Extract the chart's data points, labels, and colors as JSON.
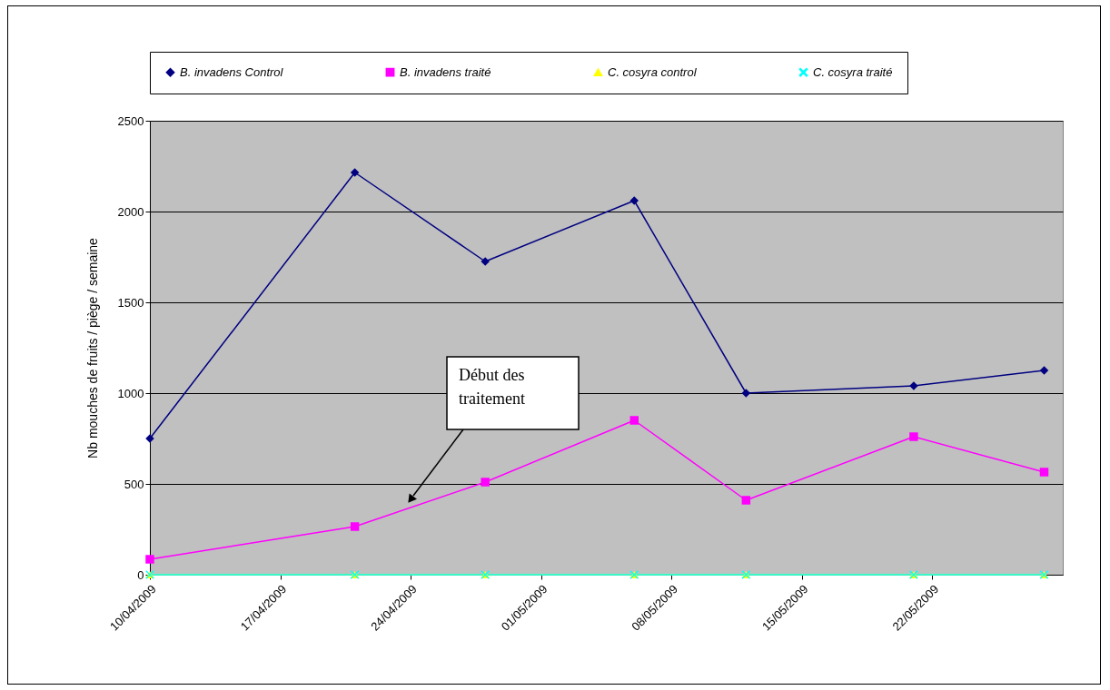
{
  "chart_data": {
    "type": "line",
    "ylabel": "Nb mouches de fruits / piège / semaine",
    "x": [
      "2009-04-10",
      "2009-04-21",
      "2009-04-28",
      "2009-05-06",
      "2009-05-12",
      "2009-05-21",
      "2009-05-28"
    ],
    "series": [
      {
        "name": "B. invadens Control",
        "color": "#000080",
        "marker": "diamond",
        "values": [
          750,
          2215,
          1725,
          2060,
          1000,
          1040,
          1125
        ]
      },
      {
        "name": "B. invadens traité",
        "color": "#ff00ff",
        "marker": "square",
        "values": [
          85,
          265,
          510,
          850,
          410,
          760,
          565
        ]
      },
      {
        "name": "C. cosyra control",
        "color": "#ffff00",
        "marker": "triangle",
        "values": [
          0,
          0,
          0,
          0,
          0,
          0,
          0
        ]
      },
      {
        "name": "C. cosyra traité",
        "color": "#00ffff",
        "marker": "cross",
        "values": [
          0,
          0,
          0,
          0,
          0,
          0,
          0
        ]
      }
    ],
    "xlim": [
      "2009-04-10",
      "2009-05-29"
    ],
    "xticks": [
      {
        "value": "2009-04-10",
        "label": "10/04/2009"
      },
      {
        "value": "2009-04-17",
        "label": "17/04/2009"
      },
      {
        "value": "2009-04-24",
        "label": "24/04/2009"
      },
      {
        "value": "2009-05-01",
        "label": "01/05/2009"
      },
      {
        "value": "2009-05-08",
        "label": "08/05/2009"
      },
      {
        "value": "2009-05-15",
        "label": "15/05/2009"
      },
      {
        "value": "2009-05-22",
        "label": "22/05/2009"
      }
    ],
    "ylim": [
      0,
      2500
    ],
    "yticks": [
      0,
      500,
      1000,
      1500,
      2000,
      2500
    ],
    "grid": "y",
    "legend": "top",
    "line_style": "solid",
    "annotations": [
      "Début des traitement"
    ]
  }
}
